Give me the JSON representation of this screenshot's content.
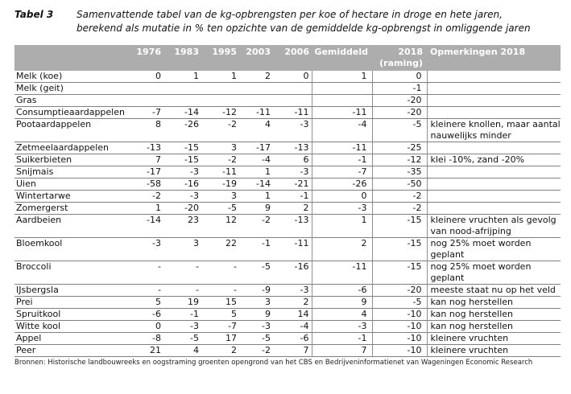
{
  "title": {
    "label": "Tabel 3",
    "line1": "Samenvattende tabel van de kg-opbrengsten per koe of hectare in droge en hete jaren,",
    "line2": "berekend als mutatie in % ten opzichte van de gemiddelde kg-opbrengst in omliggende jaren"
  },
  "colors": {
    "header_bg": "#adadad",
    "header_text": "#ffffff",
    "row_line": "#808080",
    "body_text": "#111111"
  },
  "table": {
    "headers": {
      "product": "",
      "years": [
        "1976",
        "1983",
        "1995",
        "2003",
        "2006"
      ],
      "gemiddeld": "Gemiddeld",
      "y2018_line1": "2018",
      "y2018_line2": "(raming)",
      "opmerkingen": "Opmerkingen 2018"
    },
    "rows": [
      {
        "product": "Melk (koe)",
        "values": [
          "0",
          "1",
          "1",
          "2",
          "0"
        ],
        "gemiddeld": "1",
        "raming_2018": "0",
        "opmerking": ""
      },
      {
        "product": "Melk (geit)",
        "values": [
          "",
          "",
          "",
          "",
          ""
        ],
        "gemiddeld": "",
        "raming_2018": "-1",
        "opmerking": ""
      },
      {
        "product": "Gras",
        "values": [
          "",
          "",
          "",
          "",
          ""
        ],
        "gemiddeld": "",
        "raming_2018": "-20",
        "opmerking": ""
      },
      {
        "product": "Consumptieaardappelen",
        "values": [
          "-7",
          "-14",
          "-12",
          "-11",
          "-11"
        ],
        "gemiddeld": "-11",
        "raming_2018": "-20",
        "opmerking": ""
      },
      {
        "product": "Pootaardappelen",
        "values": [
          "8",
          "-26",
          "-2",
          "4",
          "-3"
        ],
        "gemiddeld": "-4",
        "raming_2018": "-5",
        "opmerking": "kleinere knollen, maar aantal nauwelijks minder"
      },
      {
        "product": "Zetmeelaardappelen",
        "values": [
          "-13",
          "-15",
          "3",
          "-17",
          "-13"
        ],
        "gemiddeld": "-11",
        "raming_2018": "-25",
        "opmerking": ""
      },
      {
        "product": "Suikerbieten",
        "values": [
          "7",
          "-15",
          "-2",
          "-4",
          "6"
        ],
        "gemiddeld": "-1",
        "raming_2018": "-12",
        "opmerking": "klei -10%, zand -20%"
      },
      {
        "product": "Snijmais",
        "values": [
          "-17",
          "-3",
          "-11",
          "1",
          "-3"
        ],
        "gemiddeld": "-7",
        "raming_2018": "-35",
        "opmerking": ""
      },
      {
        "product": "Uien",
        "values": [
          "-58",
          "-16",
          "-19",
          "-14",
          "-21"
        ],
        "gemiddeld": "-26",
        "raming_2018": "-50",
        "opmerking": ""
      },
      {
        "product": "Wintertarwe",
        "values": [
          "-2",
          "-3",
          "3",
          "1",
          "-1"
        ],
        "gemiddeld": "0",
        "raming_2018": "-2",
        "opmerking": ""
      },
      {
        "product": "Zomergerst",
        "values": [
          "1",
          "-20",
          "-5",
          "9",
          "2"
        ],
        "gemiddeld": "-3",
        "raming_2018": "-2",
        "opmerking": ""
      },
      {
        "product": "Aardbeien",
        "values": [
          "-14",
          "23",
          "12",
          "-2",
          "-13"
        ],
        "gemiddeld": "1",
        "raming_2018": "-15",
        "opmerking": "kleinere vruchten als gevolg van nood-afrijping"
      },
      {
        "product": "Bloemkool",
        "values": [
          "-3",
          "3",
          "22",
          "-1",
          "-11"
        ],
        "gemiddeld": "2",
        "raming_2018": "-15",
        "opmerking": "nog 25% moet worden geplant"
      },
      {
        "product": "Broccoli",
        "values": [
          "-",
          "-",
          "-",
          "-5",
          "-16"
        ],
        "gemiddeld": "-11",
        "raming_2018": "-15",
        "opmerking": "nog 25% moet worden geplant"
      },
      {
        "product": "IJsbergsla",
        "values": [
          "-",
          "-",
          "-",
          "-9",
          "-3"
        ],
        "gemiddeld": "-6",
        "raming_2018": "-20",
        "opmerking": "meeste staat nu op het veld"
      },
      {
        "product": "Prei",
        "values": [
          "5",
          "19",
          "15",
          "3",
          "2"
        ],
        "gemiddeld": "9",
        "raming_2018": "-5",
        "opmerking": "kan nog herstellen"
      },
      {
        "product": "Spruitkool",
        "values": [
          "-6",
          "-1",
          "5",
          "9",
          "14"
        ],
        "gemiddeld": "4",
        "raming_2018": "-10",
        "opmerking": "kan nog herstellen"
      },
      {
        "product": "Witte kool",
        "values": [
          "0",
          "-3",
          "-7",
          "-3",
          "-4"
        ],
        "gemiddeld": "-3",
        "raming_2018": "-10",
        "opmerking": "kan nog herstellen"
      },
      {
        "product": "Appel",
        "values": [
          "-8",
          "-5",
          "17",
          "-5",
          "-6"
        ],
        "gemiddeld": "-1",
        "raming_2018": "-10",
        "opmerking": "kleinere vruchten"
      },
      {
        "product": "Peer",
        "values": [
          "21",
          "4",
          "2",
          "-2",
          "7"
        ],
        "gemiddeld": "7",
        "raming_2018": "-10",
        "opmerking": "kleinere vruchten"
      }
    ]
  },
  "footer": {
    "bronnen": "Bronnen: Historische landbouwreeks en oogstraming groenten opengrond van het CBS en Bedrijveninformatienet van Wageningen Economic Research"
  }
}
